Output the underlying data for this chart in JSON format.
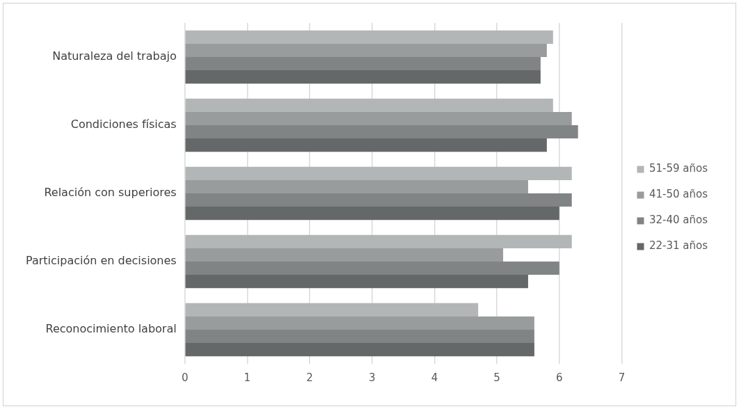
{
  "chart_data": {
    "type": "bar",
    "orientation": "horizontal",
    "categories": [
      "Naturaleza del trabajo",
      "Condiciones físicas",
      "Relación con superiores",
      "Participación en decisiones",
      "Reconocimiento laboral"
    ],
    "series": [
      {
        "name": "51-59 años",
        "color": "#b3b6b7",
        "values": [
          5.9,
          5.9,
          6.2,
          6.2,
          4.7
        ]
      },
      {
        "name": "41-50 años",
        "color": "#999c9d",
        "values": [
          5.8,
          6.2,
          5.5,
          5.1,
          5.6
        ]
      },
      {
        "name": "32-40 años",
        "color": "#818485",
        "values": [
          5.7,
          6.3,
          6.2,
          6.0,
          5.6
        ]
      },
      {
        "name": "22-31 años",
        "color": "#646869",
        "values": [
          5.7,
          5.8,
          6.0,
          5.5,
          5.6
        ]
      }
    ],
    "xlim": [
      0,
      7
    ],
    "xticks": [
      0,
      1,
      2,
      3,
      4,
      5,
      6,
      7
    ],
    "grid": "x",
    "legend": "right"
  }
}
